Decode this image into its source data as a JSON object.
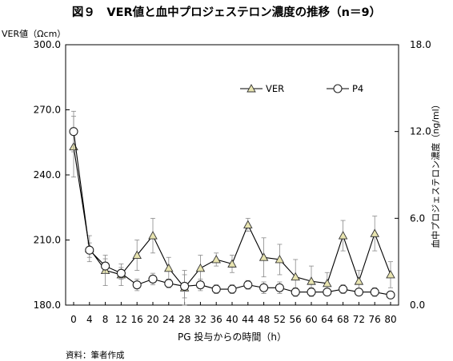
{
  "chart_data": {
    "type": "line",
    "title": "図９　VER値と血中プロジェステロン濃度の推移（n＝9）",
    "xlabel": "PG 投与からの時間（h）",
    "ylabel": "VER値（Ωcm）",
    "y2label": "血中プロジェステロン濃度（ng/ml）",
    "source": "資料：筆者作成",
    "x": [
      0,
      4,
      8,
      12,
      16,
      20,
      24,
      28,
      32,
      36,
      40,
      44,
      48,
      52,
      56,
      60,
      64,
      68,
      72,
      76,
      80
    ],
    "xticks": [
      "0",
      "4",
      "8",
      "12",
      "16",
      "20",
      "24",
      "28",
      "32",
      "36",
      "40",
      "44",
      "48",
      "52",
      "56",
      "60",
      "64",
      "68",
      "72",
      "76",
      "80"
    ],
    "ylim": [
      180,
      300
    ],
    "yticks": [
      "180.0",
      "210.0",
      "240.0",
      "270.0",
      "300.0"
    ],
    "y2lim": [
      0,
      18
    ],
    "y2ticks": [
      "0.0",
      "6.0",
      "12.0",
      "18.0"
    ],
    "legend_position": "top-right",
    "grid": false,
    "series": [
      {
        "name": "VER",
        "axis": "left",
        "marker": "triangle",
        "marker_color": "#e8e4b0",
        "values": [
          253,
          206,
          196,
          194,
          203,
          212,
          197,
          188,
          197,
          201,
          199,
          217,
          202,
          201,
          193,
          191,
          190,
          212,
          191,
          213,
          194
        ],
        "errors": [
          14,
          6,
          7,
          5,
          7,
          8,
          5,
          8,
          6,
          3,
          4,
          3,
          9,
          7,
          8,
          7,
          5,
          7,
          5,
          8,
          6
        ]
      },
      {
        "name": "P4",
        "axis": "right",
        "marker": "circle",
        "marker_color": "#ffffff",
        "values": [
          12.0,
          3.8,
          2.7,
          2.2,
          1.4,
          1.8,
          1.5,
          1.3,
          1.4,
          1.1,
          1.1,
          1.4,
          1.2,
          1.2,
          0.9,
          0.9,
          0.9,
          1.1,
          0.9,
          0.9,
          0.7
        ],
        "errors": [
          1.4,
          0.5,
          0.5,
          0.4,
          0.4,
          0.4,
          0.3,
          0.8,
          0.4,
          0.3,
          0.3,
          0.3,
          0.4,
          0.4,
          0.3,
          0.3,
          0.2,
          0.3,
          0.2,
          0.3,
          0.2
        ]
      }
    ]
  }
}
